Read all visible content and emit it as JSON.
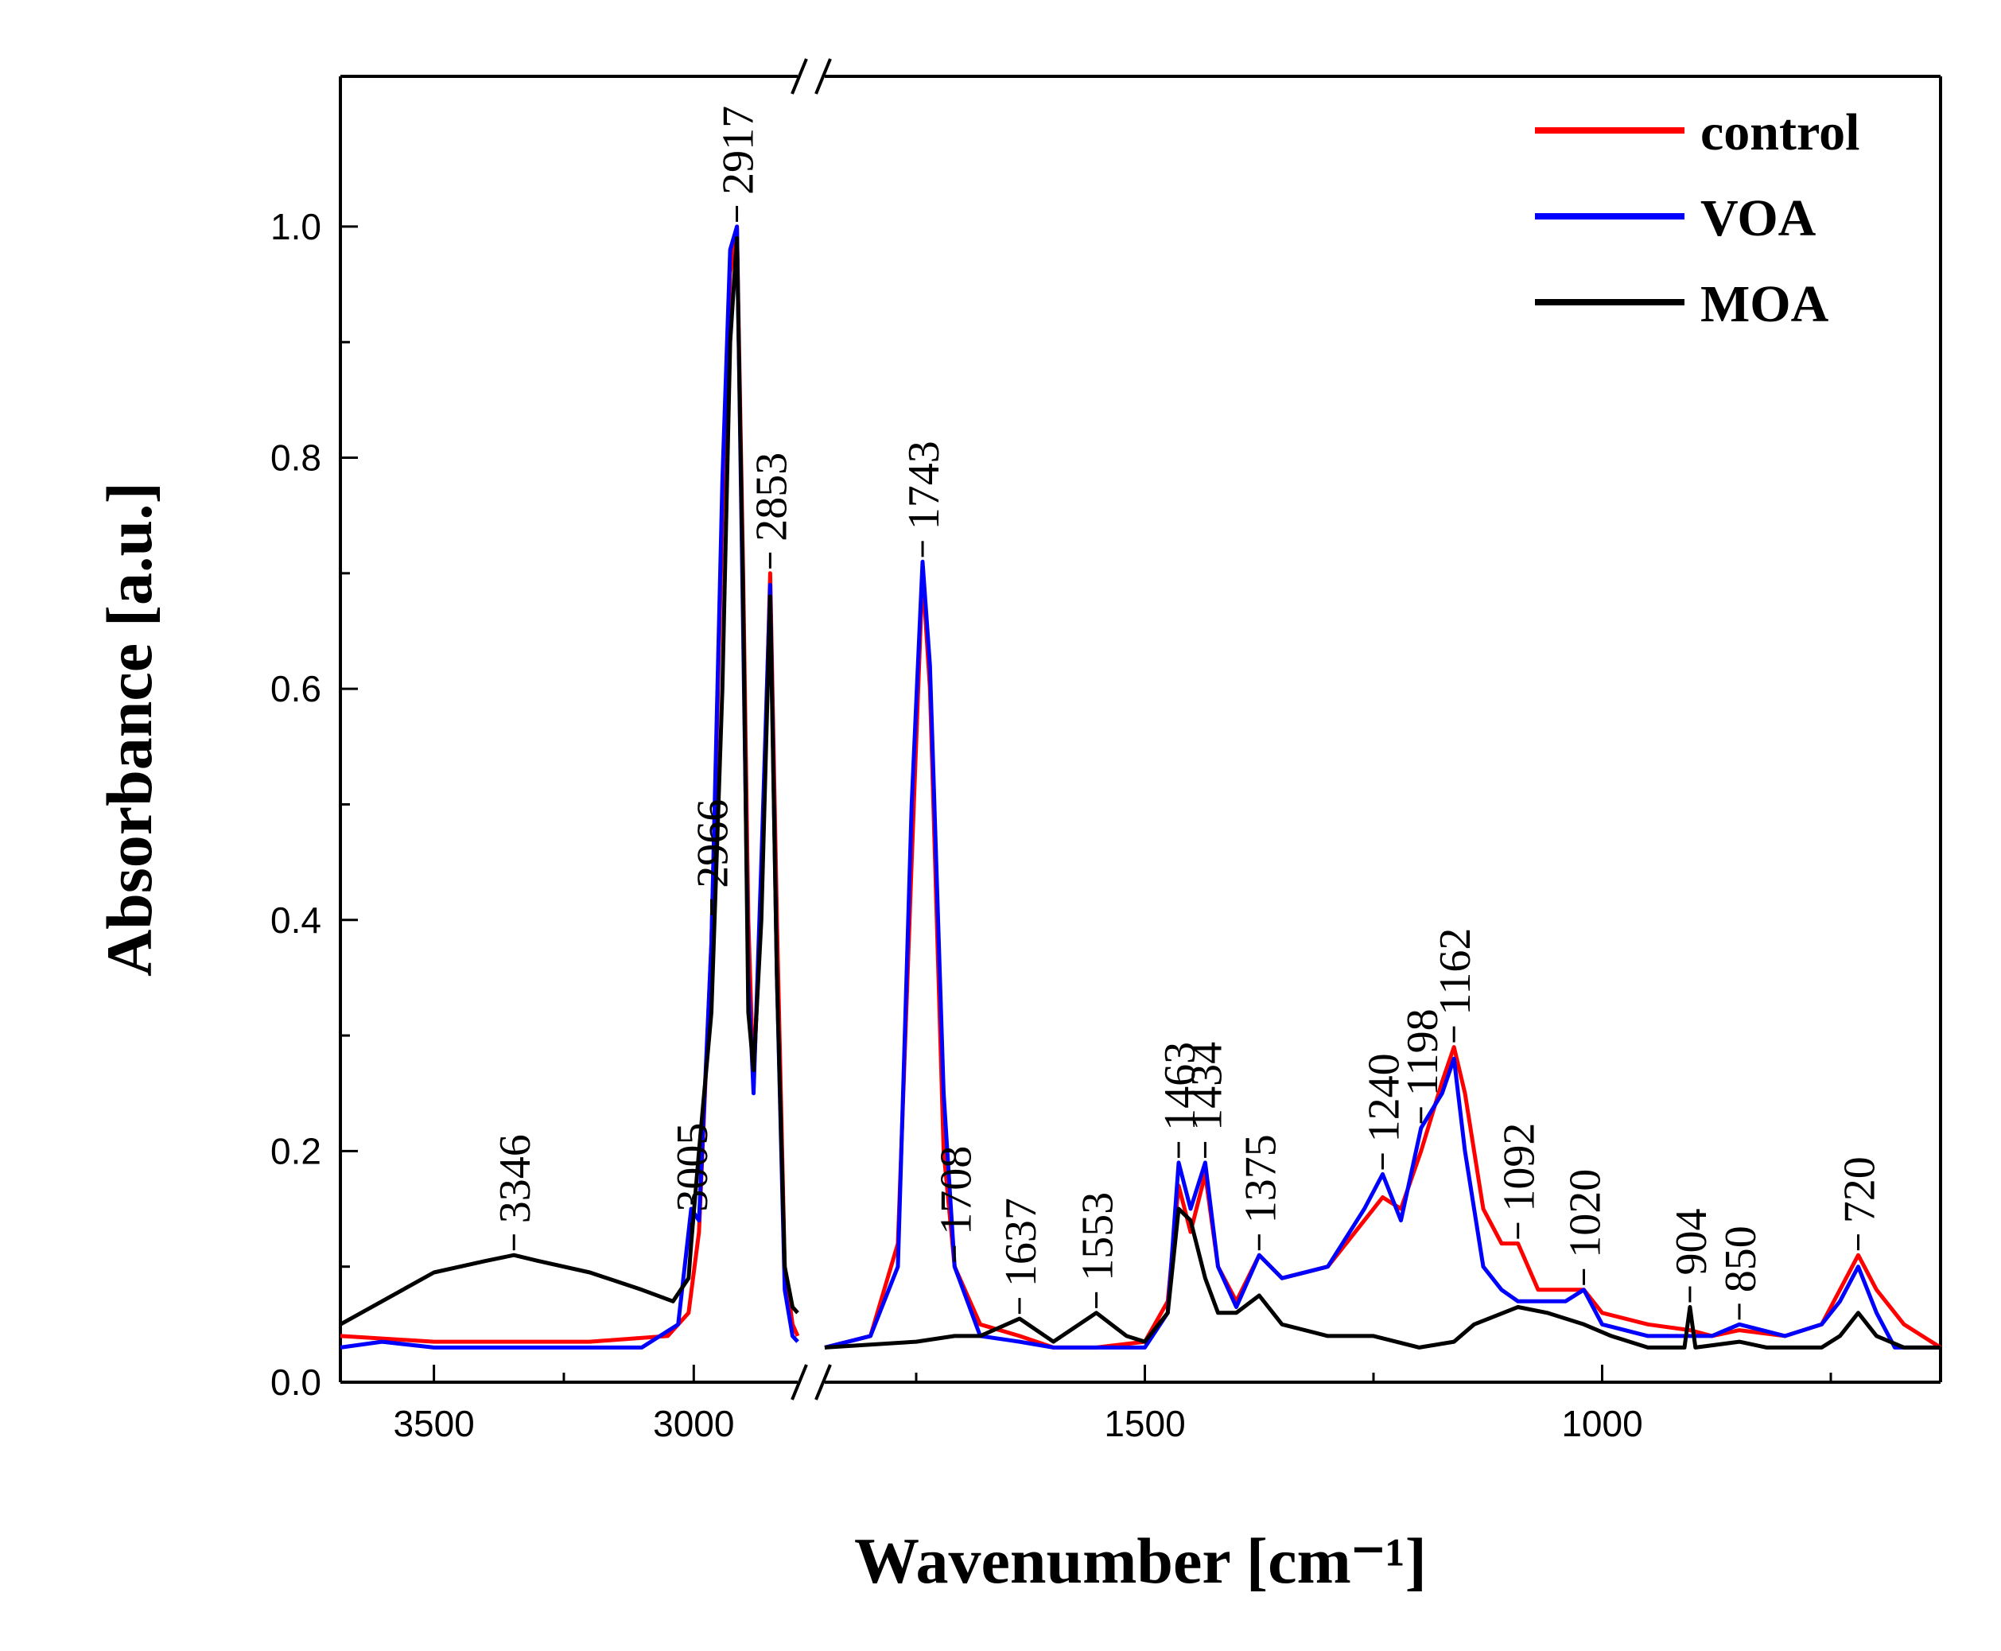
{
  "chart_data": {
    "type": "line",
    "title": "",
    "xlabel": "Wavenumber [cm⁻¹]",
    "ylabel": "Absorbance [a.u.]",
    "x_axis_break": [
      2800,
      1850
    ],
    "xlim_left_segment": [
      3680,
      2800
    ],
    "xlim_right_segment": [
      1850,
      630
    ],
    "ylim": [
      0,
      1.13
    ],
    "x_ticks_left": [
      3500,
      3000
    ],
    "x_ticks_right": [
      1500,
      1000
    ],
    "y_ticks": [
      0.0,
      0.2,
      0.4,
      0.6,
      0.8,
      1.0
    ],
    "y_tick_labels": [
      "0.0",
      "0.2",
      "0.4",
      "0.6",
      "0.8",
      "1.0"
    ],
    "x_tick_labels": [
      "3500",
      "3000",
      "1500",
      "1000"
    ],
    "legend_position": "top-right",
    "series": [
      {
        "name": "control",
        "color": "#ff0000",
        "points": [
          [
            3680,
            0.04
          ],
          [
            3500,
            0.035
          ],
          [
            3200,
            0.035
          ],
          [
            3050,
            0.04
          ],
          [
            3010,
            0.06
          ],
          [
            2990,
            0.13
          ],
          [
            2966,
            0.38
          ],
          [
            2945,
            0.75
          ],
          [
            2930,
            0.96
          ],
          [
            2917,
            1.0
          ],
          [
            2905,
            0.7
          ],
          [
            2895,
            0.4
          ],
          [
            2885,
            0.26
          ],
          [
            2870,
            0.42
          ],
          [
            2853,
            0.7
          ],
          [
            2840,
            0.4
          ],
          [
            2825,
            0.1
          ],
          [
            2810,
            0.05
          ],
          [
            2800,
            0.04
          ],
          [
            1850,
            0.03
          ],
          [
            1800,
            0.04
          ],
          [
            1770,
            0.12
          ],
          [
            1755,
            0.45
          ],
          [
            1743,
            0.7
          ],
          [
            1735,
            0.6
          ],
          [
            1720,
            0.2
          ],
          [
            1708,
            0.1
          ],
          [
            1680,
            0.05
          ],
          [
            1637,
            0.04
          ],
          [
            1600,
            0.03
          ],
          [
            1553,
            0.03
          ],
          [
            1500,
            0.035
          ],
          [
            1475,
            0.07
          ],
          [
            1463,
            0.17
          ],
          [
            1450,
            0.13
          ],
          [
            1434,
            0.18
          ],
          [
            1420,
            0.1
          ],
          [
            1400,
            0.07
          ],
          [
            1375,
            0.11
          ],
          [
            1350,
            0.09
          ],
          [
            1300,
            0.1
          ],
          [
            1260,
            0.14
          ],
          [
            1240,
            0.16
          ],
          [
            1220,
            0.15
          ],
          [
            1198,
            0.2
          ],
          [
            1175,
            0.26
          ],
          [
            1162,
            0.29
          ],
          [
            1150,
            0.25
          ],
          [
            1130,
            0.15
          ],
          [
            1110,
            0.12
          ],
          [
            1092,
            0.12
          ],
          [
            1070,
            0.08
          ],
          [
            1040,
            0.08
          ],
          [
            1020,
            0.08
          ],
          [
            1000,
            0.06
          ],
          [
            950,
            0.05
          ],
          [
            904,
            0.045
          ],
          [
            880,
            0.04
          ],
          [
            850,
            0.045
          ],
          [
            800,
            0.04
          ],
          [
            760,
            0.05
          ],
          [
            740,
            0.08
          ],
          [
            720,
            0.11
          ],
          [
            700,
            0.08
          ],
          [
            670,
            0.05
          ],
          [
            630,
            0.03
          ]
        ]
      },
      {
        "name": "VOA",
        "color": "#0000ff",
        "points": [
          [
            3680,
            0.03
          ],
          [
            3600,
            0.035
          ],
          [
            3500,
            0.03
          ],
          [
            3300,
            0.03
          ],
          [
            3100,
            0.03
          ],
          [
            3030,
            0.05
          ],
          [
            3005,
            0.15
          ],
          [
            2990,
            0.14
          ],
          [
            2966,
            0.38
          ],
          [
            2945,
            0.78
          ],
          [
            2930,
            0.98
          ],
          [
            2917,
            1.0
          ],
          [
            2905,
            0.65
          ],
          [
            2895,
            0.35
          ],
          [
            2885,
            0.25
          ],
          [
            2870,
            0.45
          ],
          [
            2853,
            0.69
          ],
          [
            2840,
            0.35
          ],
          [
            2825,
            0.08
          ],
          [
            2810,
            0.04
          ],
          [
            2800,
            0.035
          ],
          [
            1850,
            0.03
          ],
          [
            1800,
            0.04
          ],
          [
            1770,
            0.1
          ],
          [
            1755,
            0.5
          ],
          [
            1743,
            0.71
          ],
          [
            1735,
            0.62
          ],
          [
            1720,
            0.25
          ],
          [
            1708,
            0.1
          ],
          [
            1680,
            0.04
          ],
          [
            1637,
            0.035
          ],
          [
            1600,
            0.03
          ],
          [
            1553,
            0.03
          ],
          [
            1500,
            0.03
          ],
          [
            1475,
            0.06
          ],
          [
            1463,
            0.19
          ],
          [
            1450,
            0.15
          ],
          [
            1434,
            0.19
          ],
          [
            1420,
            0.1
          ],
          [
            1400,
            0.065
          ],
          [
            1375,
            0.11
          ],
          [
            1350,
            0.09
          ],
          [
            1300,
            0.1
          ],
          [
            1260,
            0.15
          ],
          [
            1240,
            0.18
          ],
          [
            1220,
            0.14
          ],
          [
            1198,
            0.22
          ],
          [
            1175,
            0.25
          ],
          [
            1162,
            0.28
          ],
          [
            1150,
            0.2
          ],
          [
            1130,
            0.1
          ],
          [
            1110,
            0.08
          ],
          [
            1092,
            0.07
          ],
          [
            1070,
            0.07
          ],
          [
            1040,
            0.07
          ],
          [
            1020,
            0.08
          ],
          [
            1000,
            0.05
          ],
          [
            950,
            0.04
          ],
          [
            904,
            0.04
          ],
          [
            880,
            0.04
          ],
          [
            850,
            0.05
          ],
          [
            800,
            0.04
          ],
          [
            760,
            0.05
          ],
          [
            740,
            0.07
          ],
          [
            720,
            0.1
          ],
          [
            700,
            0.06
          ],
          [
            680,
            0.03
          ],
          [
            630,
            0.03
          ]
        ]
      },
      {
        "name": "MOA",
        "color": "#000000",
        "points": [
          [
            3680,
            0.05
          ],
          [
            3600,
            0.07
          ],
          [
            3500,
            0.095
          ],
          [
            3400,
            0.105
          ],
          [
            3346,
            0.11
          ],
          [
            3300,
            0.105
          ],
          [
            3200,
            0.095
          ],
          [
            3100,
            0.08
          ],
          [
            3040,
            0.07
          ],
          [
            3010,
            0.09
          ],
          [
            3005,
            0.12
          ],
          [
            2990,
            0.2
          ],
          [
            2966,
            0.32
          ],
          [
            2945,
            0.6
          ],
          [
            2930,
            0.9
          ],
          [
            2917,
            0.99
          ],
          [
            2905,
            0.68
          ],
          [
            2895,
            0.32
          ],
          [
            2885,
            0.27
          ],
          [
            2870,
            0.4
          ],
          [
            2853,
            0.68
          ],
          [
            2840,
            0.35
          ],
          [
            2825,
            0.1
          ],
          [
            2810,
            0.065
          ],
          [
            2800,
            0.06
          ],
          [
            1850,
            0.03
          ],
          [
            1750,
            0.035
          ],
          [
            1708,
            0.04
          ],
          [
            1680,
            0.04
          ],
          [
            1637,
            0.055
          ],
          [
            1600,
            0.035
          ],
          [
            1553,
            0.06
          ],
          [
            1520,
            0.04
          ],
          [
            1500,
            0.035
          ],
          [
            1475,
            0.06
          ],
          [
            1463,
            0.15
          ],
          [
            1450,
            0.14
          ],
          [
            1434,
            0.09
          ],
          [
            1420,
            0.06
          ],
          [
            1400,
            0.06
          ],
          [
            1375,
            0.075
          ],
          [
            1350,
            0.05
          ],
          [
            1300,
            0.04
          ],
          [
            1250,
            0.04
          ],
          [
            1200,
            0.03
          ],
          [
            1162,
            0.035
          ],
          [
            1140,
            0.05
          ],
          [
            1092,
            0.065
          ],
          [
            1060,
            0.06
          ],
          [
            1020,
            0.05
          ],
          [
            990,
            0.04
          ],
          [
            950,
            0.03
          ],
          [
            910,
            0.03
          ],
          [
            904,
            0.065
          ],
          [
            898,
            0.03
          ],
          [
            850,
            0.035
          ],
          [
            820,
            0.03
          ],
          [
            760,
            0.03
          ],
          [
            740,
            0.04
          ],
          [
            720,
            0.06
          ],
          [
            700,
            0.04
          ],
          [
            670,
            0.03
          ],
          [
            630,
            0.03
          ]
        ]
      }
    ],
    "annotations": [
      {
        "text": "3346",
        "x": 3346,
        "y": 0.11
      },
      {
        "text": "3005",
        "x": 3005,
        "y": 0.12
      },
      {
        "text": "2966",
        "x": 2966,
        "y": 0.4
      },
      {
        "text": "2917",
        "x": 2917,
        "y": 1.0
      },
      {
        "text": "2853",
        "x": 2853,
        "y": 0.7
      },
      {
        "text": "1743",
        "x": 1743,
        "y": 0.71
      },
      {
        "text": "1708",
        "x": 1708,
        "y": 0.1
      },
      {
        "text": "1637",
        "x": 1637,
        "y": 0.055
      },
      {
        "text": "1553",
        "x": 1553,
        "y": 0.06
      },
      {
        "text": "1463",
        "x": 1463,
        "y": 0.19
      },
      {
        "text": "1434",
        "x": 1434,
        "y": 0.19
      },
      {
        "text": "1375",
        "x": 1375,
        "y": 0.11
      },
      {
        "text": "1240",
        "x": 1240,
        "y": 0.18
      },
      {
        "text": "1198",
        "x": 1198,
        "y": 0.22
      },
      {
        "text": "1162",
        "x": 1162,
        "y": 0.29
      },
      {
        "text": "1092",
        "x": 1092,
        "y": 0.12
      },
      {
        "text": "1020",
        "x": 1020,
        "y": 0.08
      },
      {
        "text": "904",
        "x": 904,
        "y": 0.065
      },
      {
        "text": "850",
        "x": 850,
        "y": 0.05
      },
      {
        "text": "720",
        "x": 720,
        "y": 0.11
      }
    ]
  }
}
